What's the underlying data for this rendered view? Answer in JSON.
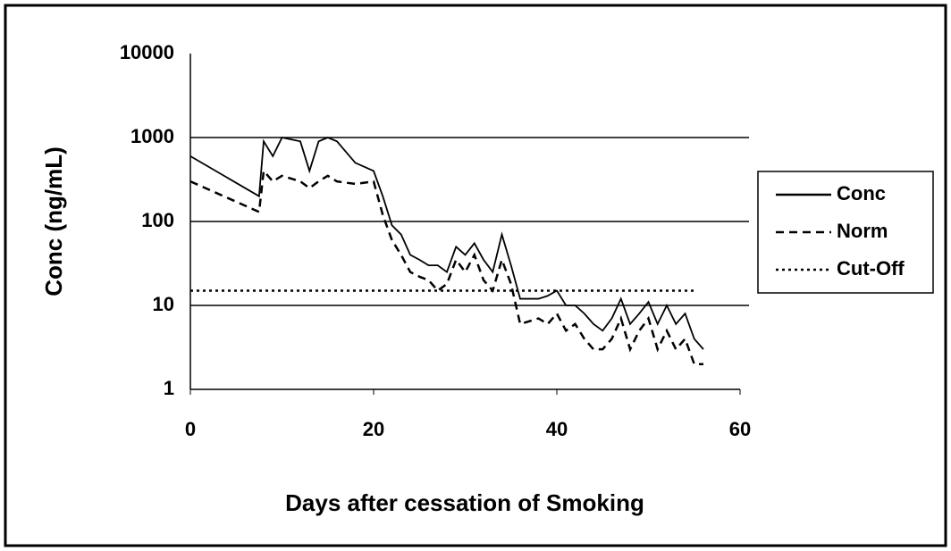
{
  "chart_data": {
    "type": "line",
    "log_y": true,
    "grid": true,
    "legend": "right",
    "xlabel": "Days after cessation of Smoking",
    "ylabel": "Conc (ng/mL)",
    "xlim": [
      0,
      60
    ],
    "xticks": [
      0,
      20,
      40,
      60
    ],
    "ylim": [
      1,
      10000
    ],
    "yticks": [
      1,
      10,
      100,
      1000,
      10000
    ],
    "series": [
      {
        "name": "Conc",
        "color": "#000000",
        "dash": "solid",
        "x": [
          0,
          7.5,
          8,
          9,
          10,
          12,
          13,
          14,
          15,
          16,
          18,
          20,
          21,
          22,
          23,
          24,
          25,
          26,
          27,
          28,
          29,
          30,
          31,
          32,
          33,
          34,
          35,
          36,
          38,
          39,
          40,
          41,
          42,
          43,
          44,
          45,
          46,
          47,
          48,
          49,
          50,
          51,
          52,
          53,
          54,
          55,
          56
        ],
        "values": [
          600,
          200,
          900,
          600,
          1000,
          900,
          400,
          900,
          1000,
          900,
          500,
          400,
          200,
          90,
          70,
          40,
          35,
          30,
          30,
          25,
          50,
          40,
          55,
          35,
          25,
          70,
          30,
          12,
          12,
          13,
          15,
          10,
          10,
          8,
          6,
          5,
          7,
          12,
          6,
          8,
          11,
          6,
          10,
          6,
          8,
          4,
          3
        ]
      },
      {
        "name": "Norm",
        "color": "#000000",
        "dash": "dashed",
        "x": [
          0,
          7.5,
          8,
          9,
          10,
          12,
          13,
          14,
          15,
          16,
          18,
          20,
          21,
          22,
          23,
          24,
          25,
          26,
          27,
          28,
          29,
          30,
          31,
          32,
          33,
          34,
          35,
          36,
          38,
          39,
          40,
          41,
          42,
          43,
          44,
          45,
          46,
          47,
          48,
          49,
          50,
          51,
          52,
          53,
          54,
          55,
          56
        ],
        "values": [
          300,
          130,
          400,
          300,
          350,
          300,
          250,
          300,
          350,
          300,
          280,
          300,
          120,
          60,
          40,
          25,
          22,
          20,
          15,
          18,
          35,
          25,
          40,
          20,
          15,
          35,
          18,
          6,
          7,
          6,
          8,
          5,
          6,
          4,
          3,
          3,
          4,
          7,
          3,
          5,
          7,
          3,
          5,
          3,
          4,
          2,
          2
        ]
      },
      {
        "name": "Cut-Off",
        "color": "#000000",
        "dash": "dotted",
        "x": [
          0,
          55
        ],
        "values": [
          15,
          15
        ]
      }
    ]
  }
}
